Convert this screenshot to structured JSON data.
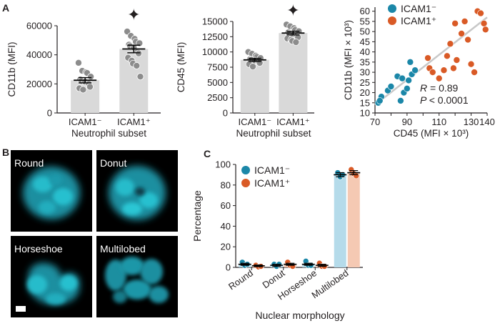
{
  "panel_labels": {
    "a": "A",
    "b": "B",
    "c": "C"
  },
  "colors": {
    "icam_neg": "#1b87a8",
    "icam_pos": "#d95a26",
    "bar_gray": "#d9d9d9",
    "dot_gray": "#8c8c8c",
    "bar_blue": "#b5dbea",
    "bar_orange": "#f5c9b3",
    "fit_line": "#c8c8c8"
  },
  "micro_labels": [
    "Round",
    "Donut",
    "Horseshoe",
    "Multilobed"
  ],
  "chart_data": [
    {
      "id": "cd11b",
      "type": "bar",
      "ylabel": "CD11b (MFI)",
      "xlabel": "Neutrophil subset",
      "categories": [
        "ICAM1⁻",
        "ICAM1⁺"
      ],
      "ylim": [
        0,
        60000
      ],
      "yticks": [
        0,
        20000,
        40000,
        60000
      ],
      "ytick_labels": [
        "0",
        "20000",
        "40000",
        "60000"
      ],
      "means": [
        22500,
        44000
      ],
      "sem": [
        1800,
        2600
      ],
      "significance_marker": "✦",
      "points": [
        [
          34500,
          29000,
          28000,
          27500,
          25000,
          23000,
          22000,
          21500,
          20000,
          18000,
          17000,
          16000
        ],
        [
          56000,
          53000,
          51000,
          49000,
          48000,
          47000,
          46000,
          45000,
          42000,
          41000,
          38000,
          36000,
          34000,
          32500,
          25000
        ]
      ]
    },
    {
      "id": "cd45",
      "type": "bar",
      "ylabel": "CD45 (MFI)",
      "xlabel": "Neutrophil subset",
      "categories": [
        "ICAM1⁻",
        "ICAM1⁺"
      ],
      "ylim": [
        0,
        15000
      ],
      "yticks": [
        0,
        2500,
        5000,
        7500,
        10000,
        12500,
        15000
      ],
      "ytick_labels": [
        "0",
        "2500",
        "5000",
        "7500",
        "10000",
        "12500",
        "15000"
      ],
      "means": [
        8700,
        13100
      ],
      "sem": [
        250,
        300
      ],
      "significance_marker": "✦",
      "points": [
        [
          10000,
          9700,
          9400,
          9200,
          9000,
          8800,
          8700,
          8600,
          8400,
          8200,
          8000,
          7600
        ],
        [
          14500,
          14200,
          13900,
          13600,
          13400,
          13200,
          13000,
          12800,
          12600,
          12400,
          12200,
          12000,
          11800,
          11600
        ]
      ]
    },
    {
      "id": "scatter",
      "type": "scatter",
      "xlabel": "CD45 (MFI × 10³)",
      "ylabel": "CD11b (MFI × 10³)",
      "xlim": [
        70,
        140
      ],
      "ylim": [
        10,
        62
      ],
      "xticks": [
        70,
        80,
        90,
        100,
        110,
        120,
        130,
        140
      ],
      "xtick_labels": [
        "70",
        "",
        "90",
        "",
        "110",
        "",
        "130",
        "140"
      ],
      "yticks": [
        10,
        15,
        20,
        25,
        30,
        35,
        40,
        45,
        50,
        55,
        60
      ],
      "ytick_labels": [
        "10",
        "15",
        "20",
        "25",
        "30",
        "35",
        "40",
        "45",
        "50",
        "55",
        "60"
      ],
      "legend": [
        "ICAM1⁻",
        "ICAM1⁺"
      ],
      "fit_line": [
        [
          70,
          14
        ],
        [
          140,
          57
        ]
      ],
      "annotation_r": "= 0.89",
      "annotation_p": "< 0.0001",
      "series": [
        {
          "name": "ICAM1⁻",
          "points": [
            [
              72,
              15
            ],
            [
              74,
              18
            ],
            [
              78,
              21
            ],
            [
              80,
              23
            ],
            [
              84,
              28
            ],
            [
              86,
              16
            ],
            [
              87,
              27
            ],
            [
              88,
              20
            ],
            [
              90,
              22
            ],
            [
              91,
              26
            ],
            [
              92,
              35
            ],
            [
              93,
              29
            ],
            [
              95,
              31
            ],
            [
              73,
              16
            ]
          ]
        },
        {
          "name": "ICAM1⁺",
          "points": [
            [
              103,
              37
            ],
            [
              104,
              32
            ],
            [
              106,
              30
            ],
            [
              110,
              27
            ],
            [
              113,
              31
            ],
            [
              115,
              38
            ],
            [
              117,
              44
            ],
            [
              119,
              32
            ],
            [
              121,
              36
            ],
            [
              124,
              49
            ],
            [
              126,
              55
            ],
            [
              128,
              46
            ],
            [
              130,
              34
            ],
            [
              132,
              30
            ],
            [
              134,
              60
            ],
            [
              136,
              59
            ],
            [
              138,
              54
            ],
            [
              139,
              51
            ],
            [
              120,
              54
            ]
          ]
        }
      ]
    },
    {
      "id": "morphology",
      "type": "bar",
      "ylabel": "Percentage",
      "xlabel": "Nuclear morphology",
      "categories": [
        "Round",
        "Donut",
        "Horseshoe",
        "Multilobed"
      ],
      "ylim": [
        0,
        100
      ],
      "yticks": [
        0,
        20,
        40,
        60,
        80,
        100
      ],
      "ytick_labels": [
        "0",
        "20",
        "40",
        "60",
        "80",
        "100"
      ],
      "legend": [
        "ICAM1⁻",
        "ICAM1⁺"
      ],
      "series": [
        {
          "name": "ICAM1⁻",
          "values": [
            3,
            2,
            3,
            90
          ],
          "sem": [
            1,
            1,
            1,
            2
          ],
          "points": [
            [
              5,
              2,
              3
            ],
            [
              3,
              1,
              3
            ],
            [
              6,
              2,
              2
            ],
            [
              92,
              88,
              90
            ]
          ]
        },
        {
          "name": "ICAM1⁺",
          "values": [
            1.5,
            3,
            2,
            92
          ],
          "sem": [
            0.8,
            1,
            1,
            2
          ],
          "points": [
            [
              2,
              0.5,
              1
            ],
            [
              5,
              2,
              1
            ],
            [
              4,
              1,
              1
            ],
            [
              95,
              91,
              89
            ]
          ]
        }
      ]
    }
  ]
}
